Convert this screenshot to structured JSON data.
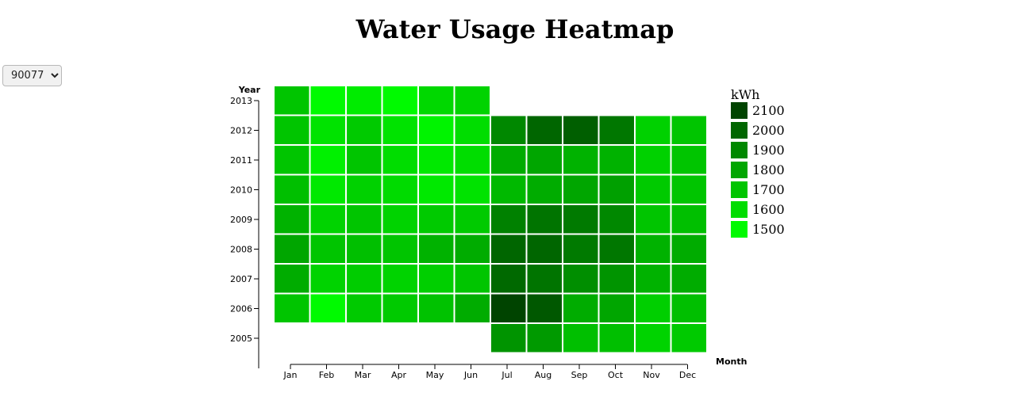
{
  "title": "Water Usage Heatmap",
  "zip_selector": {
    "selected": "90077",
    "options": [
      "90077"
    ]
  },
  "chart_data": {
    "type": "heatmap",
    "title": "Water Usage Heatmap",
    "xlabel": "Month",
    "ylabel": "Year",
    "months": [
      "Jan",
      "Feb",
      "Mar",
      "Apr",
      "May",
      "Jun",
      "Jul",
      "Aug",
      "Sep",
      "Oct",
      "Nov",
      "Dec"
    ],
    "years": [
      "2005",
      "2006",
      "2007",
      "2008",
      "2009",
      "2010",
      "2011",
      "2012",
      "2013"
    ],
    "legend": {
      "title": "kWh",
      "values": [
        2100,
        2000,
        1900,
        1800,
        1700,
        1600,
        1500
      ],
      "colors": [
        "#004400",
        "#006600",
        "#008800",
        "#00a600",
        "#00c500",
        "#00dd00",
        "#00fa00"
      ],
      "position": "right"
    },
    "cells": [
      {
        "year": "2013",
        "month": "Jan",
        "value": 1700
      },
      {
        "year": "2013",
        "month": "Feb",
        "value": 1500
      },
      {
        "year": "2013",
        "month": "Mar",
        "value": 1550
      },
      {
        "year": "2013",
        "month": "Apr",
        "value": 1500
      },
      {
        "year": "2013",
        "month": "May",
        "value": 1620
      },
      {
        "year": "2013",
        "month": "Jun",
        "value": 1640
      },
      {
        "year": "2012",
        "month": "Jan",
        "value": 1700
      },
      {
        "year": "2012",
        "month": "Feb",
        "value": 1580
      },
      {
        "year": "2012",
        "month": "Mar",
        "value": 1680
      },
      {
        "year": "2012",
        "month": "Apr",
        "value": 1580
      },
      {
        "year": "2012",
        "month": "May",
        "value": 1520
      },
      {
        "year": "2012",
        "month": "Jun",
        "value": 1600
      },
      {
        "year": "2012",
        "month": "Jul",
        "value": 1900
      },
      {
        "year": "2012",
        "month": "Aug",
        "value": 2000
      },
      {
        "year": "2012",
        "month": "Sep",
        "value": 2020
      },
      {
        "year": "2012",
        "month": "Oct",
        "value": 1950
      },
      {
        "year": "2012",
        "month": "Nov",
        "value": 1650
      },
      {
        "year": "2012",
        "month": "Dec",
        "value": 1700
      },
      {
        "year": "2011",
        "month": "Jan",
        "value": 1700
      },
      {
        "year": "2011",
        "month": "Feb",
        "value": 1530
      },
      {
        "year": "2011",
        "month": "Mar",
        "value": 1700
      },
      {
        "year": "2011",
        "month": "Apr",
        "value": 1600
      },
      {
        "year": "2011",
        "month": "May",
        "value": 1560
      },
      {
        "year": "2011",
        "month": "Jun",
        "value": 1600
      },
      {
        "year": "2011",
        "month": "Jul",
        "value": 1780
      },
      {
        "year": "2011",
        "month": "Aug",
        "value": 1800
      },
      {
        "year": "2011",
        "month": "Sep",
        "value": 1760
      },
      {
        "year": "2011",
        "month": "Oct",
        "value": 1760
      },
      {
        "year": "2011",
        "month": "Nov",
        "value": 1650
      },
      {
        "year": "2011",
        "month": "Dec",
        "value": 1700
      },
      {
        "year": "2010",
        "month": "Jan",
        "value": 1720
      },
      {
        "year": "2010",
        "month": "Feb",
        "value": 1560
      },
      {
        "year": "2010",
        "month": "Mar",
        "value": 1650
      },
      {
        "year": "2010",
        "month": "Apr",
        "value": 1610
      },
      {
        "year": "2010",
        "month": "May",
        "value": 1560
      },
      {
        "year": "2010",
        "month": "Jun",
        "value": 1580
      },
      {
        "year": "2010",
        "month": "Jul",
        "value": 1740
      },
      {
        "year": "2010",
        "month": "Aug",
        "value": 1780
      },
      {
        "year": "2010",
        "month": "Sep",
        "value": 1800
      },
      {
        "year": "2010",
        "month": "Oct",
        "value": 1820
      },
      {
        "year": "2010",
        "month": "Nov",
        "value": 1680
      },
      {
        "year": "2010",
        "month": "Dec",
        "value": 1700
      },
      {
        "year": "2009",
        "month": "Jan",
        "value": 1760
      },
      {
        "year": "2009",
        "month": "Feb",
        "value": 1640
      },
      {
        "year": "2009",
        "month": "Mar",
        "value": 1700
      },
      {
        "year": "2009",
        "month": "Apr",
        "value": 1640
      },
      {
        "year": "2009",
        "month": "May",
        "value": 1680
      },
      {
        "year": "2009",
        "month": "Jun",
        "value": 1680
      },
      {
        "year": "2009",
        "month": "Jul",
        "value": 1920
      },
      {
        "year": "2009",
        "month": "Aug",
        "value": 1960
      },
      {
        "year": "2009",
        "month": "Sep",
        "value": 1940
      },
      {
        "year": "2009",
        "month": "Oct",
        "value": 1900
      },
      {
        "year": "2009",
        "month": "Nov",
        "value": 1700
      },
      {
        "year": "2009",
        "month": "Dec",
        "value": 1720
      },
      {
        "year": "2008",
        "month": "Jan",
        "value": 1800
      },
      {
        "year": "2008",
        "month": "Feb",
        "value": 1700
      },
      {
        "year": "2008",
        "month": "Mar",
        "value": 1720
      },
      {
        "year": "2008",
        "month": "Apr",
        "value": 1700
      },
      {
        "year": "2008",
        "month": "May",
        "value": 1760
      },
      {
        "year": "2008",
        "month": "Jun",
        "value": 1780
      },
      {
        "year": "2008",
        "month": "Jul",
        "value": 2000
      },
      {
        "year": "2008",
        "month": "Aug",
        "value": 2000
      },
      {
        "year": "2008",
        "month": "Sep",
        "value": 1940
      },
      {
        "year": "2008",
        "month": "Oct",
        "value": 1950
      },
      {
        "year": "2008",
        "month": "Nov",
        "value": 1760
      },
      {
        "year": "2008",
        "month": "Dec",
        "value": 1780
      },
      {
        "year": "2007",
        "month": "Jan",
        "value": 1780
      },
      {
        "year": "2007",
        "month": "Feb",
        "value": 1640
      },
      {
        "year": "2007",
        "month": "Mar",
        "value": 1670
      },
      {
        "year": "2007",
        "month": "Apr",
        "value": 1640
      },
      {
        "year": "2007",
        "month": "May",
        "value": 1660
      },
      {
        "year": "2007",
        "month": "Jun",
        "value": 1700
      },
      {
        "year": "2007",
        "month": "Jul",
        "value": 1990
      },
      {
        "year": "2007",
        "month": "Aug",
        "value": 1960
      },
      {
        "year": "2007",
        "month": "Sep",
        "value": 1880
      },
      {
        "year": "2007",
        "month": "Oct",
        "value": 1860
      },
      {
        "year": "2007",
        "month": "Nov",
        "value": 1760
      },
      {
        "year": "2007",
        "month": "Dec",
        "value": 1780
      },
      {
        "year": "2006",
        "month": "Jan",
        "value": 1700
      },
      {
        "year": "2006",
        "month": "Feb",
        "value": 1500
      },
      {
        "year": "2006",
        "month": "Mar",
        "value": 1680
      },
      {
        "year": "2006",
        "month": "Apr",
        "value": 1680
      },
      {
        "year": "2006",
        "month": "May",
        "value": 1710
      },
      {
        "year": "2006",
        "month": "Jun",
        "value": 1780
      },
      {
        "year": "2006",
        "month": "Jul",
        "value": 2100
      },
      {
        "year": "2006",
        "month": "Aug",
        "value": 2040
      },
      {
        "year": "2006",
        "month": "Sep",
        "value": 1780
      },
      {
        "year": "2006",
        "month": "Oct",
        "value": 1800
      },
      {
        "year": "2006",
        "month": "Nov",
        "value": 1660
      },
      {
        "year": "2006",
        "month": "Dec",
        "value": 1720
      },
      {
        "year": "2005",
        "month": "Jul",
        "value": 1860
      },
      {
        "year": "2005",
        "month": "Aug",
        "value": 1840
      },
      {
        "year": "2005",
        "month": "Sep",
        "value": 1720
      },
      {
        "year": "2005",
        "month": "Oct",
        "value": 1720
      },
      {
        "year": "2005",
        "month": "Nov",
        "value": 1640
      },
      {
        "year": "2005",
        "month": "Dec",
        "value": 1680
      }
    ]
  }
}
